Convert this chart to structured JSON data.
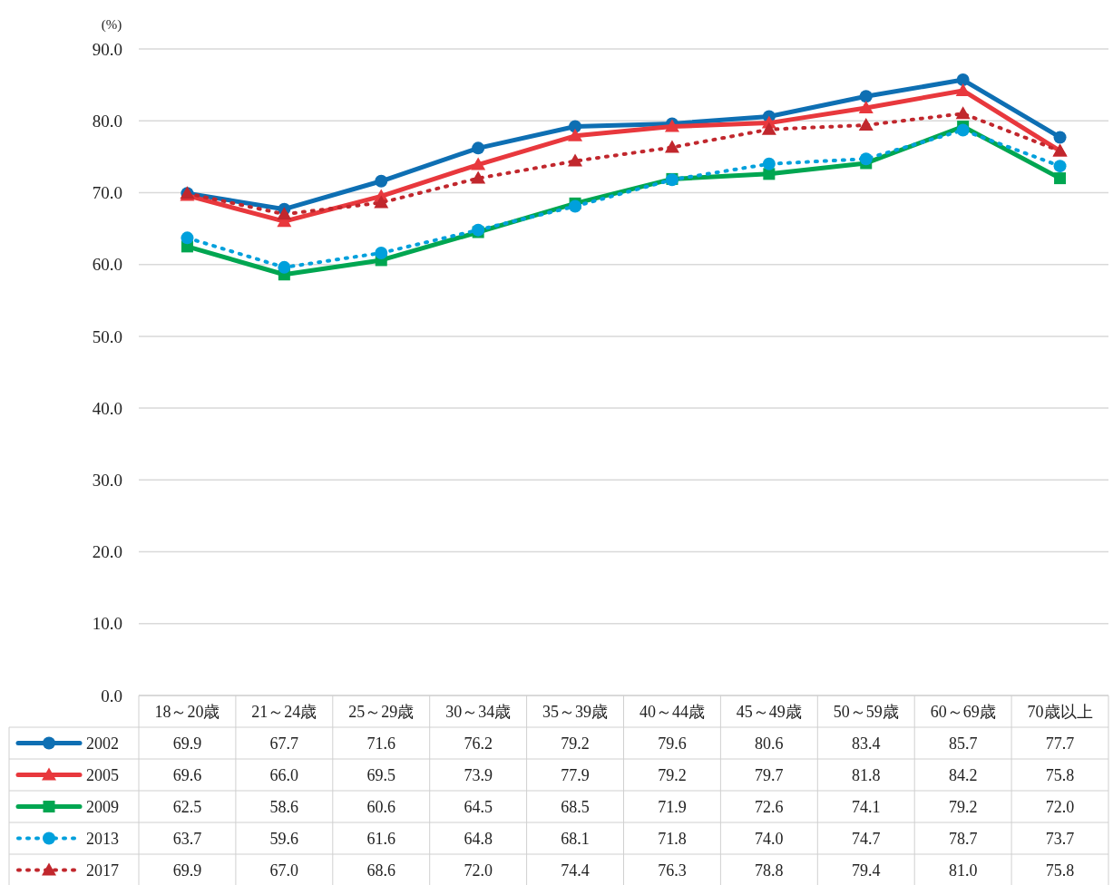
{
  "chart_data": {
    "type": "line",
    "ylabel": "(%)",
    "categories": [
      "18～20歳",
      "21～24歳",
      "25～29歳",
      "30～34歳",
      "35～39歳",
      "40～44歳",
      "45～49歳",
      "50～59歳",
      "60～69歳",
      "70歳以上"
    ],
    "series": [
      {
        "name": "2002",
        "color": "#0e6fb3",
        "marker": "circle",
        "line_style": "solid",
        "values": [
          69.9,
          67.7,
          71.6,
          76.2,
          79.2,
          79.6,
          80.6,
          83.4,
          85.7,
          77.7
        ],
        "value_labels": [
          "69.9",
          "67.7",
          "71.6",
          "76.2",
          "79.2",
          "79.6",
          "80.6",
          "83.4",
          "85.7",
          "77.7"
        ]
      },
      {
        "name": "2005",
        "color": "#e8383d",
        "marker": "triangle",
        "line_style": "solid",
        "values": [
          69.6,
          66.0,
          69.5,
          73.9,
          77.9,
          79.2,
          79.7,
          81.8,
          84.2,
          75.8
        ],
        "value_labels": [
          "69.6",
          "66.0",
          "69.5",
          "73.9",
          "77.9",
          "79.2",
          "79.7",
          "81.8",
          "84.2",
          "75.8"
        ]
      },
      {
        "name": "2009",
        "color": "#00a651",
        "marker": "square",
        "line_style": "solid",
        "values": [
          62.5,
          58.6,
          60.6,
          64.5,
          68.5,
          71.9,
          72.6,
          74.1,
          79.2,
          72.0
        ],
        "value_labels": [
          "62.5",
          "58.6",
          "60.6",
          "64.5",
          "68.5",
          "71.9",
          "72.6",
          "74.1",
          "79.2",
          "72.0"
        ]
      },
      {
        "name": "2013",
        "color": "#00a0dc",
        "marker": "circle",
        "line_style": "dotted",
        "values": [
          63.7,
          59.6,
          61.6,
          64.8,
          68.1,
          71.8,
          74.0,
          74.7,
          78.7,
          73.7
        ],
        "value_labels": [
          "63.7",
          "59.6",
          "61.6",
          "64.8",
          "68.1",
          "71.8",
          "74.0",
          "74.7",
          "78.7",
          "73.7"
        ]
      },
      {
        "name": "2017",
        "color": "#c1272d",
        "marker": "triangle",
        "line_style": "dotted",
        "values": [
          69.9,
          67.0,
          68.6,
          72.0,
          74.4,
          76.3,
          78.8,
          79.4,
          81.0,
          75.8
        ],
        "value_labels": [
          "69.9",
          "67.0",
          "68.6",
          "72.0",
          "74.4",
          "76.3",
          "78.8",
          "79.4",
          "81.0",
          "75.8"
        ]
      }
    ],
    "ylim": [
      0,
      90
    ],
    "yticks": [
      {
        "value": 0,
        "label": "0.0"
      },
      {
        "value": 10,
        "label": "10.0"
      },
      {
        "value": 20,
        "label": "20.0"
      },
      {
        "value": 30,
        "label": "30.0"
      },
      {
        "value": 40,
        "label": "40.0"
      },
      {
        "value": 50,
        "label": "50.0"
      },
      {
        "value": 60,
        "label": "60.0"
      },
      {
        "value": 70,
        "label": "70.0"
      },
      {
        "value": 80,
        "label": "80.0"
      },
      {
        "value": 90,
        "label": "90.0"
      }
    ],
    "grid": "y",
    "legend": "bottom"
  }
}
